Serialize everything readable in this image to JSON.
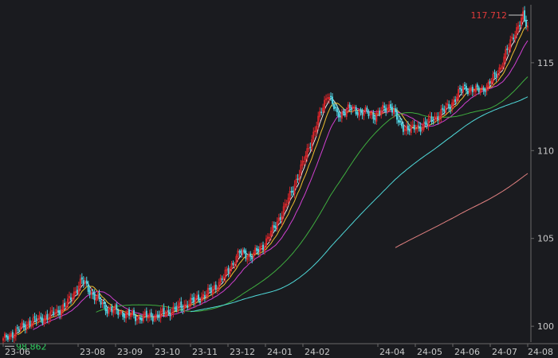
{
  "chart_data": {
    "type": "candlestick",
    "grid": false,
    "background": "#1a1b1f",
    "colors": {
      "up": "#d8262b",
      "down": "#4fd1e0",
      "text": "#c8c8c8",
      "axis": "#6a6a6a"
    },
    "ylim": [
      99.1,
      118.3
    ],
    "yticks": [
      100,
      105,
      110,
      115
    ],
    "xticks": [
      "23-06",
      "23-08",
      "23-09",
      "23-10",
      "23-11",
      "23-12",
      "24-01",
      "24-02",
      "24-04",
      "24-05",
      "24-06",
      "24-07",
      "24-08"
    ],
    "x_first": "2023-06",
    "x_last": "2024-08",
    "max_label": "117.712",
    "min_label": "98.862",
    "max_color": "#e03a3a",
    "min_color": "#2fcf5f",
    "close_waypoints": [
      [
        0,
        99.2
      ],
      [
        6,
        99.6
      ],
      [
        16,
        100.2
      ],
      [
        30,
        100.6
      ],
      [
        40,
        101.2
      ],
      [
        50,
        102.6
      ],
      [
        58,
        101.7
      ],
      [
        66,
        101.0
      ],
      [
        74,
        100.8
      ],
      [
        86,
        100.5
      ],
      [
        98,
        100.6
      ],
      [
        110,
        101.0
      ],
      [
        122,
        101.5
      ],
      [
        132,
        102.0
      ],
      [
        140,
        102.8
      ],
      [
        150,
        104.2
      ],
      [
        158,
        104.0
      ],
      [
        165,
        104.6
      ],
      [
        172,
        105.6
      ],
      [
        180,
        107.0
      ],
      [
        190,
        109.2
      ],
      [
        198,
        111.2
      ],
      [
        206,
        113.3
      ],
      [
        212,
        112.0
      ],
      [
        220,
        112.4
      ],
      [
        236,
        112.0
      ],
      [
        246,
        112.6
      ],
      [
        252,
        111.4
      ],
      [
        260,
        111.2
      ],
      [
        268,
        111.5
      ],
      [
        276,
        112.0
      ],
      [
        284,
        112.6
      ],
      [
        292,
        113.6
      ],
      [
        300,
        113.4
      ],
      [
        308,
        113.7
      ],
      [
        316,
        114.8
      ],
      [
        324,
        116.6
      ],
      [
        330,
        117.6
      ],
      [
        333,
        117.0
      ]
    ],
    "series": [
      {
        "name": "",
        "type": "line",
        "period": 5,
        "color": "#e8e8e8"
      },
      {
        "name": "",
        "type": "line",
        "period": 10,
        "color": "#f0c030"
      },
      {
        "name": "",
        "type": "line",
        "period": 20,
        "color": "#d040d0"
      },
      {
        "name": "",
        "type": "line",
        "period": 60,
        "color": "#3fae3f"
      },
      {
        "name": "",
        "type": "line",
        "period": 120,
        "color": "#4fd8d8"
      },
      {
        "name": "",
        "type": "line",
        "period": 250,
        "color": "#e08080"
      }
    ]
  }
}
